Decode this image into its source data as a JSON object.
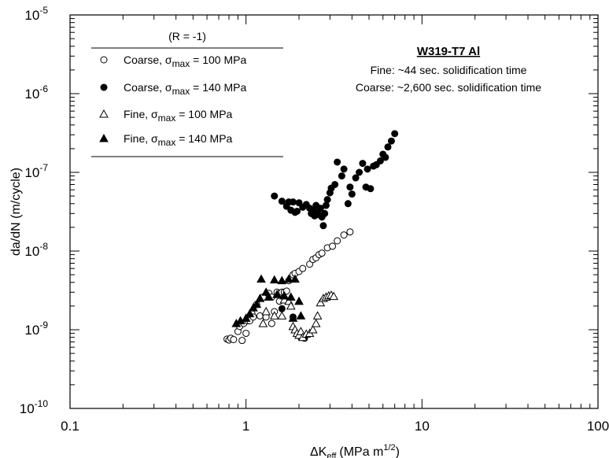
{
  "chart_data": {
    "type": "scatter",
    "x_scale": "log",
    "y_scale": "log",
    "xlim": [
      0.1,
      100
    ],
    "ylim": [
      1e-10,
      1e-05
    ],
    "x_ticks": [
      {
        "value": 0.1,
        "label": "0.1"
      },
      {
        "value": 1,
        "label": "1"
      },
      {
        "value": 10,
        "label": "10"
      },
      {
        "value": 100,
        "label": "100"
      }
    ],
    "y_ticks": [
      {
        "value": 1e-10,
        "base": "10",
        "exp": "-10"
      },
      {
        "value": 1e-09,
        "base": "10",
        "exp": "-9"
      },
      {
        "value": 1e-08,
        "base": "10",
        "exp": "-8"
      },
      {
        "value": 1e-07,
        "base": "10",
        "exp": "-7"
      },
      {
        "value": 1e-06,
        "base": "10",
        "exp": "-6"
      },
      {
        "value": 1e-05,
        "base": "10",
        "exp": "-5"
      }
    ],
    "xlabel": {
      "main": "ΔK",
      "sub": "eff",
      "units": "(MPa m",
      "sup": "1/2",
      "close": ")"
    },
    "ylabel": "da/dN (m/cycle)",
    "grid": false,
    "legend": {
      "placement": "top-left",
      "header": "(R = -1)",
      "entries": [
        {
          "prefix": "Coarse, σ",
          "sub": "max",
          "suffix": " = 100 MPa",
          "marker": "open-circle"
        },
        {
          "prefix": "Coarse, σ",
          "sub": "max",
          "suffix": " = 140 MPa",
          "marker": "filled-circle"
        },
        {
          "prefix": "Fine, σ",
          "sub": "max",
          "suffix": " = 100 MPa",
          "marker": "open-triangle"
        },
        {
          "prefix": "Fine, σ",
          "sub": "max",
          "suffix": " = 140 MPa",
          "marker": "filled-triangle"
        }
      ]
    },
    "annotation": {
      "title": "W319-T7 Al",
      "lines": [
        "Fine: ~44 sec. solidification time",
        "Coarse: ~2,600 sec. solidification time"
      ]
    },
    "series": [
      {
        "marker": "open-circle",
        "points": [
          [
            0.78,
            7.6e-10
          ],
          [
            0.8,
            7.4e-10
          ],
          [
            0.82,
            7.8e-10
          ],
          [
            0.85,
            7.5e-10
          ],
          [
            0.9,
            9.5e-10
          ],
          [
            0.92,
            1.1e-09
          ],
          [
            0.95,
            7.3e-10
          ],
          [
            0.97,
            1.2e-09
          ],
          [
            1.0,
            9e-10
          ],
          [
            1.02,
            1.3e-09
          ],
          [
            1.05,
            1.3e-09
          ],
          [
            1.08,
            1.6e-09
          ],
          [
            1.1,
            1.45e-09
          ],
          [
            1.15,
            2.1e-09
          ],
          [
            1.2,
            1.5e-09
          ],
          [
            1.25,
            2.6e-09
          ],
          [
            1.3,
            1.45e-09
          ],
          [
            1.35,
            2.9e-09
          ],
          [
            1.4,
            2.6e-09
          ],
          [
            1.4,
            1.2e-09
          ],
          [
            1.45,
            1.7e-09
          ],
          [
            1.5,
            3e-09
          ],
          [
            1.55,
            2.9e-09
          ],
          [
            1.55,
            2.3e-09
          ],
          [
            1.6,
            3e-09
          ],
          [
            1.65,
            3e-09
          ],
          [
            1.7,
            3.1e-09
          ],
          [
            1.75,
            4.2e-09
          ],
          [
            1.8,
            4.5e-09
          ],
          [
            1.85,
            5e-09
          ],
          [
            1.9,
            5.2e-09
          ],
          [
            2.0,
            5.5e-09
          ],
          [
            2.1,
            6e-09
          ],
          [
            2.3,
            6.8e-09
          ],
          [
            2.4,
            7.8e-09
          ],
          [
            2.5,
            8.2e-09
          ],
          [
            2.6,
            9e-09
          ],
          [
            2.7,
            9.4e-09
          ],
          [
            2.9,
            1.1e-08
          ],
          [
            3.1,
            1.15e-08
          ],
          [
            3.3,
            1.35e-08
          ],
          [
            3.6,
            1.6e-08
          ],
          [
            3.9,
            1.75e-08
          ]
        ]
      },
      {
        "marker": "filled-circle",
        "points": [
          [
            1.45,
            5e-08
          ],
          [
            1.6,
            4.3e-08
          ],
          [
            1.7,
            3.7e-08
          ],
          [
            1.75,
            4.2e-08
          ],
          [
            1.8,
            3.3e-08
          ],
          [
            1.85,
            4.2e-08
          ],
          [
            1.9,
            3.1e-08
          ],
          [
            1.95,
            3.2e-08
          ],
          [
            2.0,
            4.1e-08
          ],
          [
            2.1,
            3.6e-08
          ],
          [
            2.2,
            3.9e-08
          ],
          [
            2.3,
            3.5e-08
          ],
          [
            2.35,
            3e-08
          ],
          [
            2.4,
            3.3e-08
          ],
          [
            2.45,
            2.8e-08
          ],
          [
            2.5,
            3.8e-08
          ],
          [
            2.55,
            3.1e-08
          ],
          [
            2.6,
            2.9e-08
          ],
          [
            2.65,
            3.5e-08
          ],
          [
            2.7,
            2.7e-08
          ],
          [
            2.75,
            2.1e-08
          ],
          [
            2.8,
            3e-08
          ],
          [
            2.85,
            3.8e-08
          ],
          [
            2.9,
            4.5e-08
          ],
          [
            3.0,
            5.5e-08
          ],
          [
            3.05,
            6.3e-08
          ],
          [
            3.2,
            7e-08
          ],
          [
            3.3,
            1.35e-07
          ],
          [
            3.5,
            9e-08
          ],
          [
            3.6,
            1.1e-07
          ],
          [
            3.8,
            4e-08
          ],
          [
            3.9,
            6.5e-08
          ],
          [
            4.0,
            5.3e-08
          ],
          [
            4.2,
            8.5e-08
          ],
          [
            4.4,
            1e-07
          ],
          [
            4.6,
            1.3e-07
          ],
          [
            4.8,
            6.5e-08
          ],
          [
            4.9,
            1.1e-07
          ],
          [
            5.1,
            6.2e-08
          ],
          [
            5.3,
            1.2e-07
          ],
          [
            5.5,
            1.25e-07
          ],
          [
            5.8,
            1.4e-07
          ],
          [
            6.0,
            1.7e-07
          ],
          [
            6.2,
            1.55e-07
          ],
          [
            6.4,
            2.1e-07
          ],
          [
            6.7,
            2.5e-07
          ],
          [
            7.0,
            3.1e-07
          ],
          [
            1.6,
            1.85e-09
          ],
          [
            1.85,
            1.45e-09
          ],
          [
            2.05,
            8e-10
          ],
          [
            2.15,
            7.8e-10
          ]
        ]
      },
      {
        "marker": "open-triangle",
        "points": [
          [
            1.25,
            1.2e-09
          ],
          [
            1.3,
            1.7e-09
          ],
          [
            1.45,
            1.5e-09
          ],
          [
            1.6,
            1.5e-09
          ],
          [
            1.65,
            2.4e-09
          ],
          [
            1.75,
            2.3e-09
          ],
          [
            1.8,
            2e-09
          ],
          [
            1.85,
            1.1e-09
          ],
          [
            1.9,
            1e-09
          ],
          [
            1.95,
            9e-10
          ],
          [
            2.0,
            8.5e-10
          ],
          [
            2.05,
            9.5e-10
          ],
          [
            2.1,
            8e-10
          ],
          [
            2.2,
            8.8e-10
          ],
          [
            2.3,
            9e-10
          ],
          [
            2.4,
            1e-09
          ],
          [
            2.5,
            1.2e-09
          ],
          [
            2.55,
            1.5e-09
          ],
          [
            2.65,
            2.2e-09
          ],
          [
            2.75,
            2.5e-09
          ],
          [
            2.85,
            2.6e-09
          ],
          [
            2.95,
            2.7e-09
          ],
          [
            3.05,
            2.75e-09
          ],
          [
            3.15,
            2.65e-09
          ]
        ]
      },
      {
        "marker": "filled-triangle",
        "points": [
          [
            0.88,
            1.2e-09
          ],
          [
            0.93,
            1.3e-09
          ],
          [
            1.0,
            1.4e-09
          ],
          [
            1.05,
            1.6e-09
          ],
          [
            1.1,
            1.9e-09
          ],
          [
            1.15,
            2.1e-09
          ],
          [
            1.2,
            2.5e-09
          ],
          [
            1.22,
            4.4e-09
          ],
          [
            1.3,
            3e-09
          ],
          [
            1.35,
            2.6e-09
          ],
          [
            1.45,
            4.3e-09
          ],
          [
            1.5,
            2.8e-09
          ],
          [
            1.6,
            4.2e-09
          ],
          [
            1.65,
            2.7e-09
          ],
          [
            1.75,
            4.4e-09
          ],
          [
            1.8,
            2.6e-09
          ],
          [
            1.85,
            1.4e-09
          ],
          [
            1.9,
            4.4e-09
          ],
          [
            2.0,
            2.3e-09
          ],
          [
            2.05,
            1.5e-09
          ]
        ]
      }
    ]
  }
}
